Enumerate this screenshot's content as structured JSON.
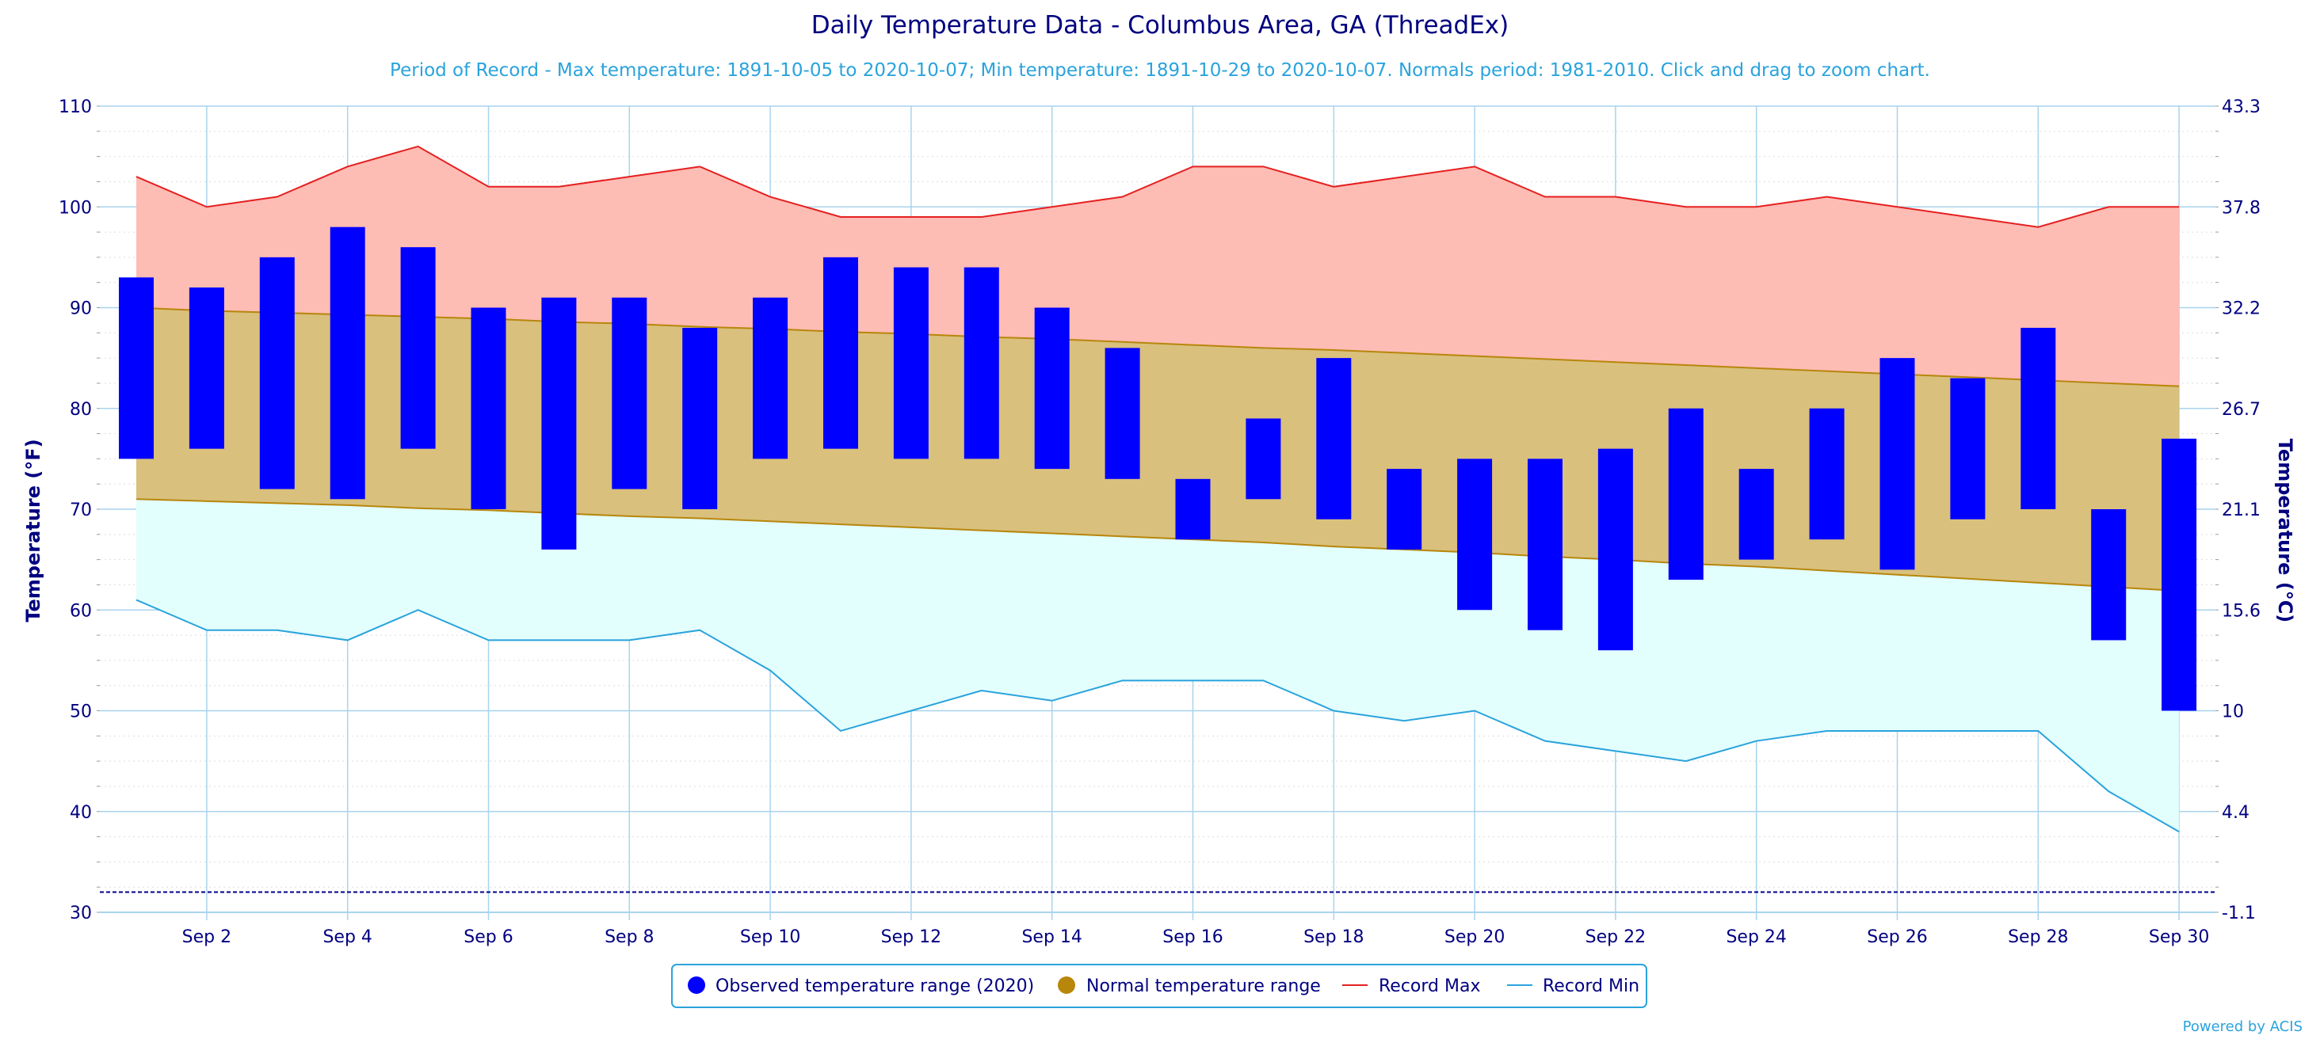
{
  "chart_data": {
    "type": "bar",
    "title": "Daily Temperature Data - Columbus Area, GA (ThreadEx)",
    "subtitle": "Period of Record - Max temperature: 1891-10-05 to 2020-10-07; Min temperature: 1891-10-29 to 2020-10-07. Normals period: 1981-2010. Click and drag to zoom chart.",
    "ylabel": "Temperature (°F)",
    "ylabel_right": "Temperature (°C)",
    "ylim": [
      30,
      110
    ],
    "yticks": [
      30,
      40,
      50,
      60,
      70,
      80,
      90,
      100,
      110
    ],
    "yticks_right": [
      "-1.1",
      "4.4",
      "10",
      "15.6",
      "21.1",
      "26.7",
      "32.2",
      "37.8",
      "43.3"
    ],
    "freezing_line": 32,
    "days": [
      1,
      2,
      3,
      4,
      5,
      6,
      7,
      8,
      9,
      10,
      11,
      12,
      13,
      14,
      15,
      16,
      17,
      18,
      19,
      20,
      21,
      22,
      23,
      24,
      25,
      26,
      27,
      28,
      29,
      30
    ],
    "xtick_labels": [
      "Sep 2",
      "Sep 4",
      "Sep 6",
      "Sep 8",
      "Sep 10",
      "Sep 12",
      "Sep 14",
      "Sep 16",
      "Sep 18",
      "Sep 20",
      "Sep 22",
      "Sep 24",
      "Sep 26",
      "Sep 28",
      "Sep 30"
    ],
    "xtick_days": [
      2,
      4,
      6,
      8,
      10,
      12,
      14,
      16,
      18,
      20,
      22,
      24,
      26,
      28,
      30
    ],
    "series": [
      {
        "name": "Observed temperature range (2020)",
        "color": "#0000ff",
        "high": [
          93,
          92,
          95,
          98,
          96,
          90,
          91,
          91,
          88,
          91,
          95,
          94,
          94,
          90,
          86,
          73,
          79,
          85,
          74,
          75,
          75,
          76,
          80,
          74,
          80,
          85,
          83,
          88,
          70,
          77
        ],
        "low": [
          75,
          76,
          72,
          71,
          76,
          70,
          66,
          72,
          70,
          75,
          76,
          75,
          75,
          74,
          73,
          67,
          71,
          69,
          66,
          60,
          58,
          56,
          63,
          65,
          67,
          64,
          69,
          70,
          57,
          50
        ]
      },
      {
        "name": "Normal temperature range",
        "color": "#b8860b",
        "high": [
          90,
          89.7,
          89.5,
          89.3,
          89.1,
          88.9,
          88.6,
          88.4,
          88.1,
          87.9,
          87.6,
          87.4,
          87.1,
          86.9,
          86.6,
          86.3,
          86.0,
          85.8,
          85.5,
          85.2,
          84.9,
          84.6,
          84.3,
          84.0,
          83.7,
          83.4,
          83.1,
          82.8,
          82.5,
          82.2
        ],
        "low": [
          71,
          70.8,
          70.6,
          70.4,
          70.1,
          69.9,
          69.6,
          69.3,
          69.1,
          68.8,
          68.5,
          68.2,
          67.9,
          67.6,
          67.3,
          67.0,
          66.7,
          66.3,
          66.0,
          65.7,
          65.3,
          65.0,
          64.6,
          64.3,
          63.9,
          63.5,
          63.1,
          62.7,
          62.3,
          61.9
        ]
      },
      {
        "name": "Record Max",
        "color": "#e52020",
        "values": [
          103,
          100,
          101,
          104,
          106,
          102,
          102,
          103,
          104,
          101,
          99,
          99,
          99,
          100,
          101,
          104,
          104,
          102,
          103,
          104,
          101,
          101,
          100,
          100,
          101,
          100,
          99,
          98,
          100,
          100
        ]
      },
      {
        "name": "Record Min",
        "color": "#2aa3dc",
        "values": [
          61,
          58,
          58,
          57,
          60,
          57,
          57,
          57,
          58,
          54,
          48,
          50,
          52,
          51,
          53,
          53,
          53,
          50,
          49,
          50,
          47,
          46,
          45,
          47,
          48,
          48,
          48,
          48,
          42,
          38
        ]
      }
    ],
    "legend": [
      {
        "label": "Observed temperature range (2020)",
        "color": "#0000ff",
        "marker": "circle"
      },
      {
        "label": "Normal temperature range",
        "color": "#b8860b",
        "marker": "circle"
      },
      {
        "label": "Record Max",
        "color": "#e52020",
        "marker": "line"
      },
      {
        "label": "Record Min",
        "color": "#2aa3dc",
        "marker": "line"
      }
    ],
    "legend_position": "bottom-center",
    "credit": "Powered by ACIS",
    "colors": {
      "record_max_fill": "#fdbcb4",
      "normal_fill": "#d9c07d",
      "record_min_fill": "#e2fefd",
      "grid": "#a8d4ee",
      "freezing": "#00008b"
    }
  }
}
